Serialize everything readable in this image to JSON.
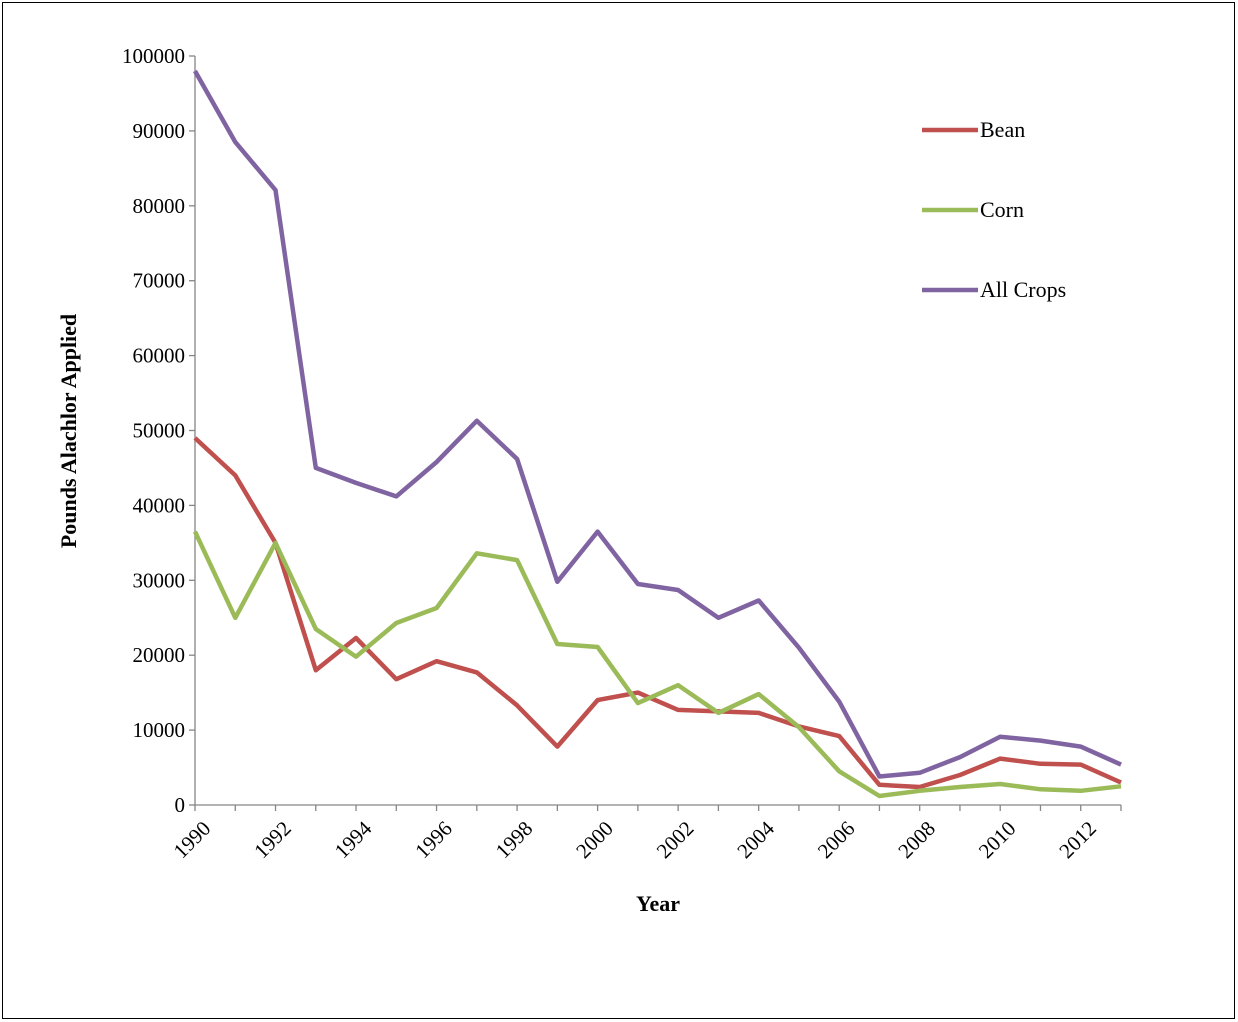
{
  "chart_data": {
    "type": "line",
    "title": "",
    "xlabel": "Year",
    "ylabel": "Pounds Alachlor Applied",
    "x": [
      1990,
      1991,
      1992,
      1993,
      1994,
      1995,
      1996,
      1997,
      1998,
      1999,
      2000,
      2001,
      2002,
      2003,
      2004,
      2005,
      2006,
      2007,
      2008,
      2009,
      2010,
      2011,
      2012,
      2013
    ],
    "xlim": [
      1990,
      2013
    ],
    "x_tick_labels": [
      "1990",
      "1992",
      "1994",
      "1996",
      "1998",
      "2000",
      "2002",
      "2004",
      "2006",
      "2008",
      "2010",
      "2012"
    ],
    "ylim": [
      0,
      100000
    ],
    "y_tick_labels": [
      "0",
      "10000",
      "20000",
      "30000",
      "40000",
      "50000",
      "60000",
      "70000",
      "80000",
      "90000",
      "100000"
    ],
    "grid": false,
    "legend_position": "top-right",
    "series": [
      {
        "name": "Bean",
        "color": "#c0504d",
        "values": [
          49000,
          44000,
          35000,
          18000,
          22300,
          16800,
          19200,
          17700,
          13300,
          7800,
          14000,
          15000,
          12700,
          12500,
          12300,
          10500,
          9200,
          2700,
          2400,
          4000,
          6200,
          5500,
          5400,
          3000
        ]
      },
      {
        "name": "Corn",
        "color": "#9bbb59",
        "values": [
          36500,
          25000,
          35000,
          23500,
          19800,
          24300,
          26300,
          33600,
          32700,
          21500,
          21100,
          13600,
          16000,
          12300,
          14800,
          10400,
          4500,
          1200,
          1900,
          2400,
          2800,
          2100,
          1900,
          2500
        ]
      },
      {
        "name": "All Crops",
        "color": "#8064a2",
        "values": [
          98000,
          88500,
          82100,
          45000,
          43000,
          41200,
          45800,
          51300,
          46200,
          29800,
          36500,
          29500,
          28700,
          25000,
          27300,
          21000,
          13800,
          3800,
          4300,
          6400,
          9100,
          8600,
          7800,
          5400
        ]
      }
    ]
  }
}
